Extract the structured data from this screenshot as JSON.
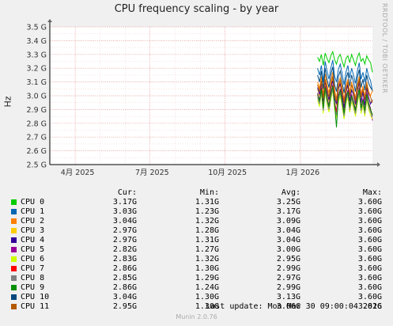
{
  "title": "CPU frequency scaling - by year",
  "side_text": "RRDTOOL / TOBI OETIKER",
  "footer": {
    "last_update": "Last update: Mon Mar 30 09:00:04 2026",
    "version": "Munin 2.0.76"
  },
  "legend_headers": {
    "cur": "Cur:",
    "min": "Min:",
    "avg": "Avg:",
    "max": "Max:"
  },
  "legend": [
    {
      "name": "CPU 0",
      "color": "#00cc00",
      "cur": "3.17G",
      "min": "1.31G",
      "avg": "3.25G",
      "max": "3.60G"
    },
    {
      "name": "CPU 1",
      "color": "#0066b3",
      "cur": "3.03G",
      "min": "1.23G",
      "avg": "3.17G",
      "max": "3.60G"
    },
    {
      "name": "CPU 2",
      "color": "#ff8000",
      "cur": "3.04G",
      "min": "1.32G",
      "avg": "3.09G",
      "max": "3.60G"
    },
    {
      "name": "CPU 3",
      "color": "#ffcc00",
      "cur": "2.97G",
      "min": "1.28G",
      "avg": "3.04G",
      "max": "3.60G"
    },
    {
      "name": "CPU 4",
      "color": "#330099",
      "cur": "2.97G",
      "min": "1.31G",
      "avg": "3.04G",
      "max": "3.60G"
    },
    {
      "name": "CPU 5",
      "color": "#990099",
      "cur": "2.82G",
      "min": "1.27G",
      "avg": "3.00G",
      "max": "3.60G"
    },
    {
      "name": "CPU 6",
      "color": "#ccff00",
      "cur": "2.83G",
      "min": "1.32G",
      "avg": "2.95G",
      "max": "3.60G"
    },
    {
      "name": "CPU 7",
      "color": "#ff0000",
      "cur": "2.86G",
      "min": "1.30G",
      "avg": "2.99G",
      "max": "3.60G"
    },
    {
      "name": "CPU 8",
      "color": "#808080",
      "cur": "2.85G",
      "min": "1.29G",
      "avg": "2.97G",
      "max": "3.60G"
    },
    {
      "name": "CPU 9",
      "color": "#008f00",
      "cur": "2.86G",
      "min": "1.24G",
      "avg": "2.99G",
      "max": "3.60G"
    },
    {
      "name": "CPU 10",
      "color": "#00487d",
      "cur": "3.04G",
      "min": "1.30G",
      "avg": "3.13G",
      "max": "3.60G"
    },
    {
      "name": "CPU 11",
      "color": "#b35a00",
      "cur": "2.95G",
      "min": "1.30G",
      "avg": "3.06G",
      "max": "3.61G"
    }
  ],
  "chart_data": {
    "type": "line",
    "title": "CPU frequency scaling - by year",
    "ylabel": "Hz",
    "ylim": [
      2.5,
      3.5
    ],
    "y_unit": "GHz",
    "y_ticks": [
      "2.5 G",
      "2.6 G",
      "2.7 G",
      "2.8 G",
      "2.9 G",
      "3.0 G",
      "3.1 G",
      "3.2 G",
      "3.3 G",
      "3.4 G",
      "3.5 G"
    ],
    "x_ticks": [
      "4月 2025",
      "7月 2025",
      "10月 2025",
      "1月 2026"
    ],
    "x_tick_dates": [
      "2025-04-01",
      "2025-07-01",
      "2025-10-01",
      "2026-01-01"
    ],
    "xlim": [
      "2025-03-01",
      "2026-03-30"
    ],
    "data_start": "2026-01-22",
    "grid": true,
    "series": [
      {
        "name": "CPU 0",
        "color": "#00cc00",
        "values": [
          3.28,
          3.25,
          3.3,
          3.22,
          3.31,
          3.27,
          3.24,
          3.29,
          3.32,
          3.26,
          3.23,
          3.28,
          3.3,
          3.25,
          3.21,
          3.27,
          3.29,
          3.24,
          3.3,
          3.26,
          3.22,
          3.28,
          3.31,
          3.25,
          3.27,
          3.23,
          3.29,
          3.26,
          3.24,
          3.17
        ]
      },
      {
        "name": "CPU 1",
        "color": "#0066b3",
        "values": [
          3.2,
          3.15,
          3.22,
          3.1,
          3.25,
          3.18,
          3.12,
          3.2,
          3.26,
          3.14,
          3.1,
          3.19,
          3.23,
          3.16,
          3.08,
          3.17,
          3.22,
          3.13,
          3.2,
          3.15,
          3.09,
          3.18,
          3.24,
          3.12,
          3.17,
          3.1,
          3.2,
          3.14,
          3.11,
          3.03
        ]
      },
      {
        "name": "CPU 2",
        "color": "#ff8000",
        "values": [
          3.1,
          3.05,
          3.14,
          3.0,
          3.16,
          3.08,
          3.02,
          3.1,
          3.17,
          3.04,
          2.98,
          3.09,
          3.13,
          3.06,
          2.97,
          3.07,
          3.12,
          3.02,
          3.1,
          3.05,
          2.98,
          3.08,
          3.14,
          3.01,
          3.07,
          2.99,
          3.1,
          3.03,
          3.0,
          3.04
        ]
      },
      {
        "name": "CPU 3",
        "color": "#ffcc00",
        "values": [
          3.05,
          3.0,
          3.1,
          2.95,
          3.1,
          3.02,
          2.96,
          3.05,
          3.12,
          2.99,
          2.93,
          3.04,
          3.08,
          3.0,
          2.92,
          3.02,
          3.07,
          2.97,
          3.05,
          3.0,
          2.93,
          3.03,
          3.09,
          2.96,
          3.02,
          2.94,
          3.05,
          2.98,
          2.95,
          2.97
        ]
      },
      {
        "name": "CPU 4",
        "color": "#330099",
        "values": [
          3.06,
          3.01,
          3.09,
          2.96,
          3.11,
          3.03,
          2.97,
          3.06,
          3.11,
          2.98,
          2.94,
          3.05,
          3.09,
          3.01,
          2.91,
          3.03,
          3.08,
          2.96,
          3.04,
          3.01,
          2.94,
          3.04,
          3.1,
          2.95,
          3.03,
          2.93,
          3.06,
          2.99,
          2.94,
          2.97
        ]
      },
      {
        "name": "CPU 5",
        "color": "#990099",
        "values": [
          3.02,
          2.97,
          3.06,
          2.92,
          3.07,
          2.99,
          2.93,
          3.02,
          3.08,
          2.95,
          2.89,
          3.0,
          3.05,
          2.97,
          2.88,
          2.99,
          3.04,
          2.93,
          3.01,
          2.96,
          2.9,
          2.99,
          3.06,
          2.92,
          2.98,
          2.9,
          3.02,
          2.95,
          2.91,
          2.82
        ]
      },
      {
        "name": "CPU 6",
        "color": "#ccff00",
        "values": [
          2.97,
          2.92,
          3.02,
          2.87,
          3.03,
          2.94,
          2.88,
          2.97,
          3.04,
          2.9,
          2.84,
          2.95,
          3.0,
          2.92,
          2.83,
          2.94,
          2.99,
          2.88,
          2.96,
          2.91,
          2.85,
          2.94,
          3.01,
          2.87,
          2.93,
          2.85,
          2.97,
          2.9,
          2.86,
          2.83
        ]
      },
      {
        "name": "CPU 7",
        "color": "#ff0000",
        "values": [
          3.01,
          2.96,
          3.05,
          2.91,
          3.06,
          2.98,
          2.92,
          3.01,
          3.07,
          2.94,
          2.88,
          2.99,
          3.04,
          2.96,
          2.87,
          2.98,
          3.03,
          2.92,
          3.0,
          2.95,
          2.89,
          2.98,
          3.05,
          2.91,
          2.97,
          2.89,
          3.01,
          2.94,
          2.9,
          2.86
        ]
      },
      {
        "name": "CPU 8",
        "color": "#808080",
        "values": [
          2.99,
          2.94,
          3.03,
          2.89,
          3.04,
          2.96,
          2.9,
          2.99,
          3.05,
          2.92,
          2.86,
          2.97,
          3.02,
          2.94,
          2.85,
          2.96,
          3.01,
          2.9,
          2.98,
          2.93,
          2.87,
          2.96,
          3.03,
          2.89,
          2.95,
          2.87,
          2.99,
          2.92,
          2.88,
          2.85
        ]
      },
      {
        "name": "CPU 9",
        "color": "#008f00",
        "values": [
          3.01,
          2.96,
          3.05,
          2.91,
          3.06,
          2.98,
          2.92,
          3.01,
          3.07,
          2.94,
          2.77,
          2.99,
          3.04,
          2.96,
          2.87,
          2.98,
          3.03,
          2.92,
          3.0,
          2.95,
          2.89,
          2.98,
          3.05,
          2.91,
          2.97,
          2.89,
          3.01,
          2.94,
          2.9,
          2.86
        ]
      },
      {
        "name": "CPU 10",
        "color": "#00487d",
        "values": [
          3.15,
          3.1,
          3.18,
          3.05,
          3.2,
          3.12,
          3.06,
          3.15,
          3.21,
          3.08,
          3.03,
          3.14,
          3.18,
          3.1,
          3.02,
          3.12,
          3.17,
          3.07,
          3.15,
          3.1,
          3.03,
          3.13,
          3.19,
          3.06,
          3.12,
          3.04,
          3.15,
          3.09,
          3.06,
          3.04
        ]
      },
      {
        "name": "CPU 11",
        "color": "#b35a00",
        "values": [
          3.08,
          3.03,
          3.11,
          2.98,
          3.12,
          3.05,
          2.99,
          3.08,
          3.14,
          3.01,
          2.96,
          3.07,
          3.11,
          3.03,
          2.95,
          3.05,
          3.1,
          3.0,
          3.08,
          3.03,
          2.96,
          3.06,
          3.12,
          2.99,
          3.05,
          2.97,
          3.08,
          3.02,
          2.99,
          2.95
        ]
      }
    ]
  }
}
